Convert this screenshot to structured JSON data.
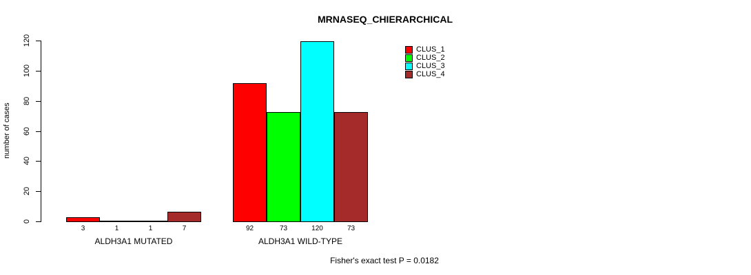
{
  "chart_data": {
    "type": "bar",
    "title": "MRNASEQ_CHIERARCHICAL",
    "ylabel": "number of cases",
    "xlabel": "",
    "ylim": [
      0,
      120
    ],
    "yticks": [
      0,
      20,
      40,
      60,
      80,
      100,
      120
    ],
    "grid": false,
    "legend_position": "top-right",
    "categories": [
      "ALDH3A1 MUTATED",
      "ALDH3A1 WILD-TYPE"
    ],
    "series": [
      {
        "name": "CLUS_1",
        "color": "#ff0000",
        "values": [
          3,
          92
        ]
      },
      {
        "name": "CLUS_2",
        "color": "#00ff00",
        "values": [
          1,
          73
        ]
      },
      {
        "name": "CLUS_3",
        "color": "#00ffff",
        "values": [
          1,
          120
        ]
      },
      {
        "name": "CLUS_4",
        "color": "#a52a2a",
        "values": [
          7,
          73
        ]
      }
    ],
    "bar_value_labels": [
      [
        "3",
        "1",
        "1",
        "7"
      ],
      [
        "92",
        "73",
        "120",
        "73"
      ]
    ],
    "annotation": "Fisher's exact test P = 0.0182"
  },
  "colors": {
    "background": "#ffffff",
    "axis": "#000000",
    "text": "#000000"
  }
}
